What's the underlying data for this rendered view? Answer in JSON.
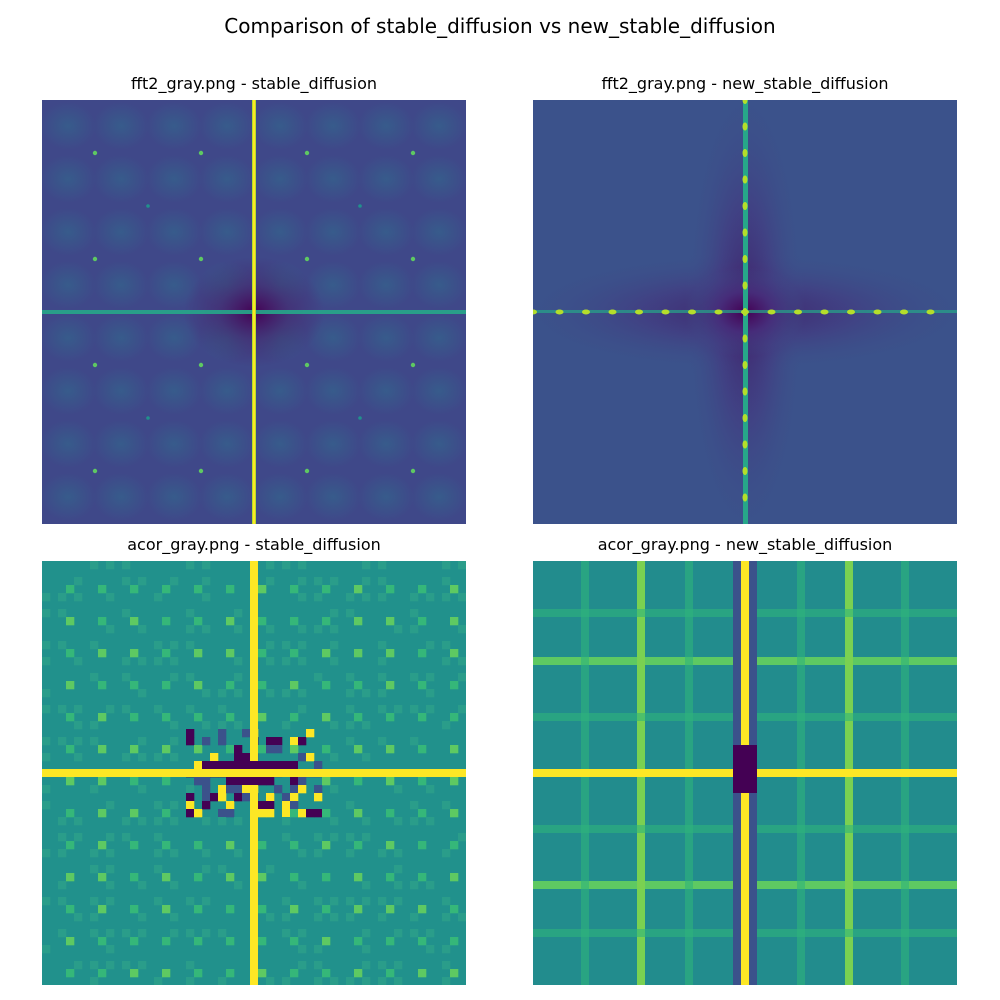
{
  "figure": {
    "title": "Comparison of stable_diffusion vs new_stable_diffusion"
  },
  "colors": {
    "viridis_dark": "#440154",
    "viridis_blue": "#3b528b",
    "viridis_teal": "#21918c",
    "viridis_green": "#5ec962",
    "viridis_yellow": "#fde725"
  },
  "chart_data": [
    {
      "type": "heatmap",
      "title": "fft2_gray.png - stable_diffusion",
      "colormap": "viridis",
      "grid": false,
      "axes_visible": false
    },
    {
      "type": "heatmap",
      "title": "fft2_gray.png - new_stable_diffusion",
      "colormap": "viridis",
      "grid": false,
      "axes_visible": false
    },
    {
      "type": "heatmap",
      "title": "acor_gray.png - stable_diffusion",
      "colormap": "viridis",
      "grid": false,
      "axes_visible": false
    },
    {
      "type": "heatmap",
      "title": "acor_gray.png - new_stable_diffusion",
      "colormap": "viridis",
      "grid": false,
      "axes_visible": false
    }
  ]
}
